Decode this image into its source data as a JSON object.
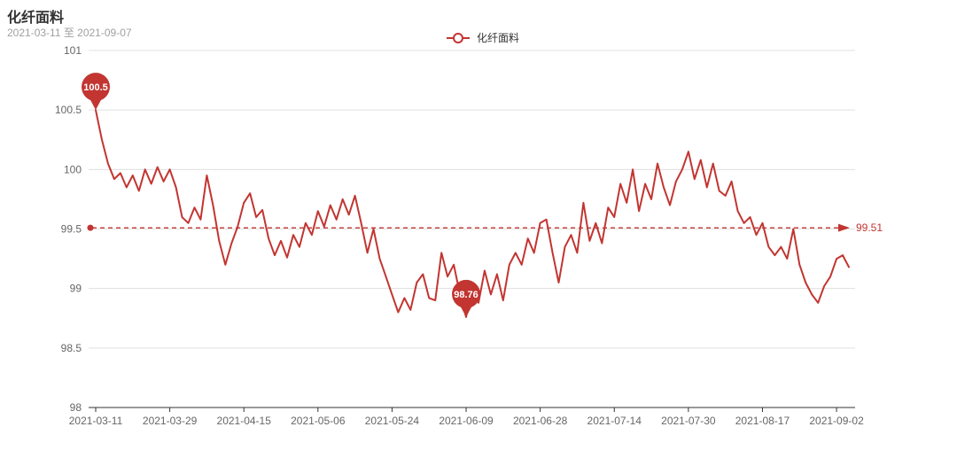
{
  "title": "化纤面料",
  "subtitle": "2021-03-11 至 2021-09-07",
  "legend": {
    "label": "化纤面料"
  },
  "colors": {
    "series": "#c23531",
    "grid": "#e0e0e0",
    "axis": "#333333",
    "tick_text": "#666666",
    "legend_text": "#333333",
    "pin_label_text": "#ffffff"
  },
  "chart_data": {
    "type": "line",
    "series_name": "化纤面料",
    "title": "化纤面料",
    "subtitle": "2021-03-11 至 2021-09-07",
    "ylim": [
      98,
      101
    ],
    "y_ticks": [
      "101",
      "100.5",
      "100",
      "99.5",
      "99",
      "98.5",
      "98"
    ],
    "y_tick_values": [
      101,
      100.5,
      100,
      99.5,
      99,
      98.5,
      98
    ],
    "x_tick_labels": [
      "2021-03-11",
      "2021-03-29",
      "2021-04-15",
      "2021-05-06",
      "2021-05-24",
      "2021-06-09",
      "2021-06-28",
      "2021-07-14",
      "2021-07-30",
      "2021-08-17",
      "2021-09-02"
    ],
    "x_tick_indices": [
      0,
      12,
      24,
      36,
      48,
      60,
      72,
      84,
      96,
      108,
      120
    ],
    "grid": true,
    "legend_position": "top-center",
    "values": [
      100.5,
      100.25,
      100.05,
      99.92,
      99.97,
      99.85,
      99.95,
      99.82,
      100.0,
      99.88,
      100.02,
      99.9,
      100.0,
      99.85,
      99.6,
      99.55,
      99.68,
      99.58,
      99.95,
      99.7,
      99.4,
      99.2,
      99.38,
      99.52,
      99.72,
      99.8,
      99.6,
      99.66,
      99.42,
      99.28,
      99.4,
      99.26,
      99.45,
      99.35,
      99.55,
      99.45,
      99.65,
      99.52,
      99.7,
      99.58,
      99.75,
      99.62,
      99.78,
      99.55,
      99.3,
      99.5,
      99.25,
      99.1,
      98.95,
      98.8,
      98.92,
      98.82,
      99.05,
      99.12,
      98.92,
      98.9,
      99.3,
      99.1,
      99.2,
      98.95,
      98.76,
      99.02,
      98.88,
      99.15,
      98.95,
      99.12,
      98.9,
      99.2,
      99.3,
      99.2,
      99.42,
      99.3,
      99.55,
      99.58,
      99.3,
      99.05,
      99.35,
      99.45,
      99.3,
      99.72,
      99.4,
      99.55,
      99.38,
      99.68,
      99.6,
      99.88,
      99.72,
      100.0,
      99.65,
      99.88,
      99.75,
      100.05,
      99.85,
      99.7,
      99.9,
      100.0,
      100.15,
      99.92,
      100.08,
      99.85,
      100.05,
      99.82,
      99.78,
      99.9,
      99.65,
      99.55,
      99.6,
      99.45,
      99.55,
      99.35,
      99.28,
      99.35,
      99.25,
      99.5,
      99.2,
      99.05,
      98.95,
      98.88,
      99.02,
      99.1,
      99.25,
      99.28,
      99.18
    ],
    "max_point": {
      "index": 0,
      "value": 100.5,
      "label": "100.5"
    },
    "min_point": {
      "index": 60,
      "value": 98.76,
      "label": "98.76"
    },
    "average_line": {
      "value": 99.51,
      "label": "99.51",
      "style": "dashed"
    }
  }
}
